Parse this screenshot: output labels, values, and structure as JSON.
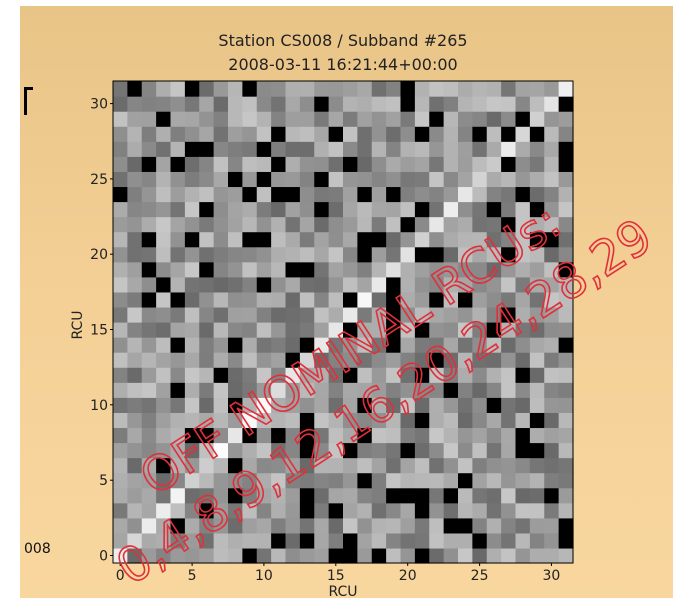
{
  "side_label": "008",
  "chart_data": {
    "type": "heatmap",
    "title": "Station CS008 / Subband #265",
    "subtitle": "2008-03-11 16:21:44+00:00",
    "xlabel": "RCU",
    "ylabel": "RCU",
    "xlim": [
      0,
      31
    ],
    "ylim": [
      0,
      31
    ],
    "x_ticks": [
      0,
      5,
      10,
      15,
      20,
      25,
      30
    ],
    "y_ticks": [
      0,
      5,
      10,
      15,
      20,
      25,
      30
    ],
    "colormap": "gray",
    "off_nominal_rcus": [
      0,
      4,
      8,
      9,
      12,
      16,
      20,
      24,
      28,
      29
    ],
    "annotation_line1": "OFF NOMINAL RCUs:",
    "annotation_line2": "0,4,8,9,12,16,20,24,28,29",
    "annotation_color": "#e0303a"
  }
}
